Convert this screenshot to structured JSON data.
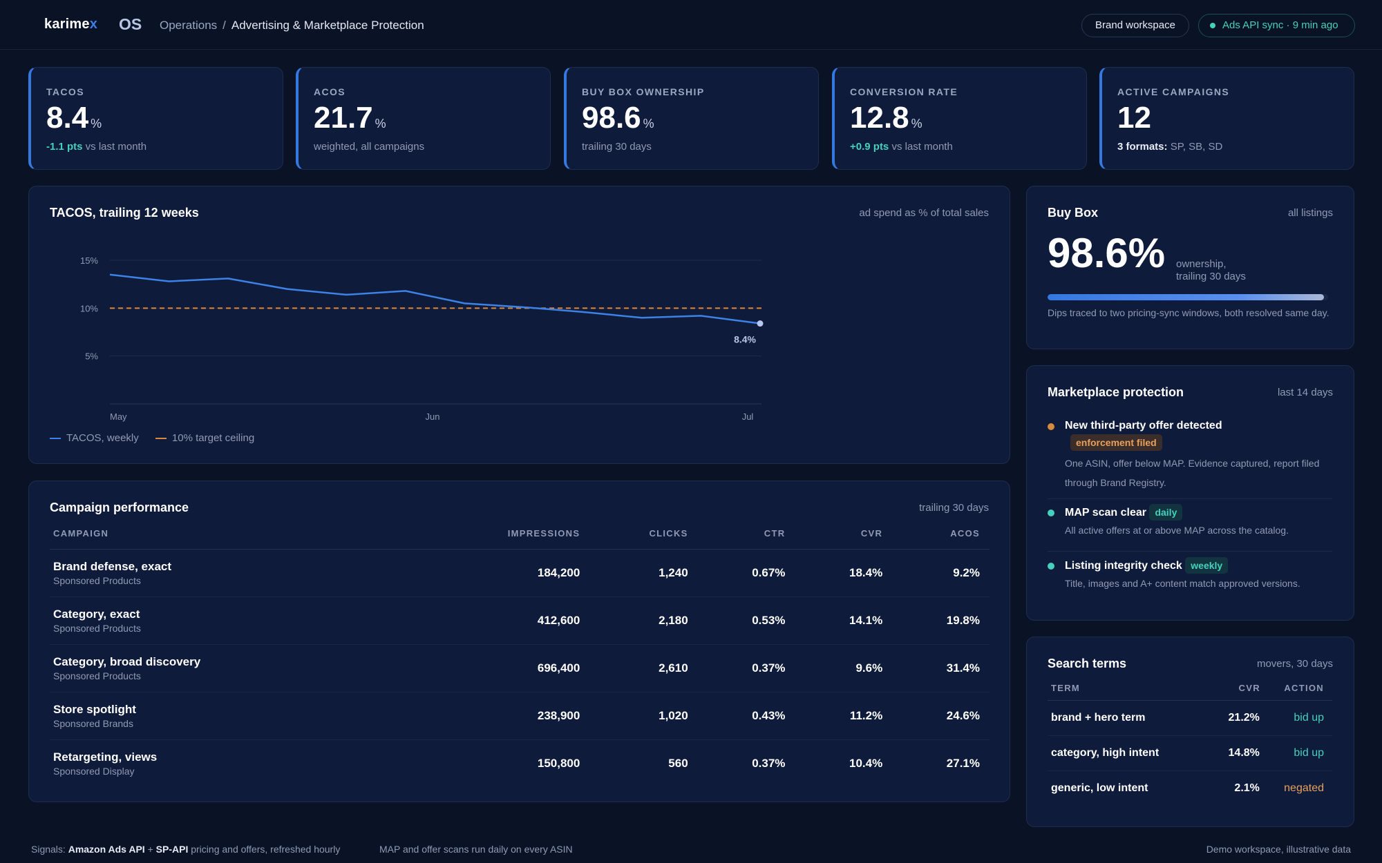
{
  "header": {
    "logo_main": "karime",
    "logo_accent": "x",
    "os_label": "OS",
    "breadcrumb_root": "Operations",
    "breadcrumb_separator": "/",
    "breadcrumb_current": "Advertising & Marketplace Protection",
    "workspace_button": "Brand workspace",
    "sync_status": "Ads API sync · 9 min ago",
    "sync_color": "#45d1bd"
  },
  "kpis": [
    {
      "label": "TACOS",
      "value": "8.4",
      "unit": "%",
      "sub_highlight": "-1.1 pts",
      "sub_text": " vs last month"
    },
    {
      "label": "ACOS",
      "value": "21.7",
      "unit": "%",
      "sub_highlight": "",
      "sub_text": "weighted, all campaigns"
    },
    {
      "label": "BUY BOX OWNERSHIP",
      "value": "98.6",
      "unit": "%",
      "sub_highlight": "",
      "sub_text": "trailing 30 days"
    },
    {
      "label": "CONVERSION RATE",
      "value": "12.8",
      "unit": "%",
      "sub_highlight": "+0.9 pts",
      "sub_text": " vs last month"
    },
    {
      "label": "ACTIVE CAMPAIGNS",
      "value": "12",
      "unit": "",
      "sub_strong": "3 formats:",
      "sub_text": " SP, SB, SD"
    }
  ],
  "tacos_chart": {
    "title": "TACOS, trailing 12 weeks",
    "note": "ad spend as % of total sales",
    "end_label": "8.4%",
    "legend_series": "TACOS, weekly",
    "legend_target": "10% target ceiling"
  },
  "chart_data": {
    "type": "line",
    "title": "TACOS, trailing 12 weeks",
    "xlabel": "",
    "ylabel": "",
    "x_tick_labels": [
      "May",
      "Jun",
      "Jul"
    ],
    "y_tick_labels": [
      "15%",
      "10%",
      "5%"
    ],
    "ylim": [
      0,
      15
    ],
    "grid": true,
    "legend_position": "bottom-left",
    "series": [
      {
        "name": "TACOS, weekly",
        "color": "#3d82e6",
        "values": [
          13.5,
          12.8,
          13.1,
          12.0,
          11.4,
          11.8,
          10.5,
          10.1,
          9.6,
          9.0,
          9.2,
          8.4
        ]
      },
      {
        "name": "10% target ceiling",
        "color": "#e0883a",
        "style": "dashed",
        "values": [
          10,
          10,
          10,
          10,
          10,
          10,
          10,
          10,
          10,
          10,
          10,
          10
        ]
      }
    ],
    "annotations": [
      "8.4%"
    ]
  },
  "campaigns": {
    "title": "Campaign performance",
    "note": "trailing 30 days",
    "columns": [
      "CAMPAIGN",
      "IMPRESSIONS",
      "CLICKS",
      "CTR",
      "CVR",
      "ACOS"
    ],
    "rows": [
      {
        "name": "Brand defense, exact",
        "type": "Sponsored Products",
        "impressions": "184,200",
        "clicks": "1,240",
        "ctr": "0.67%",
        "cvr": "18.4%",
        "acos": "9.2%"
      },
      {
        "name": "Category, exact",
        "type": "Sponsored Products",
        "impressions": "412,600",
        "clicks": "2,180",
        "ctr": "0.53%",
        "cvr": "14.1%",
        "acos": "19.8%"
      },
      {
        "name": "Category, broad discovery",
        "type": "Sponsored Products",
        "impressions": "696,400",
        "clicks": "2,610",
        "ctr": "0.37%",
        "cvr": "9.6%",
        "acos": "31.4%"
      },
      {
        "name": "Store spotlight",
        "type": "Sponsored Brands",
        "impressions": "238,900",
        "clicks": "1,020",
        "ctr": "0.43%",
        "cvr": "11.2%",
        "acos": "24.6%"
      },
      {
        "name": "Retargeting, views",
        "type": "Sponsored Display",
        "impressions": "150,800",
        "clicks": "560",
        "ctr": "0.37%",
        "cvr": "10.4%",
        "acos": "27.1%"
      }
    ]
  },
  "buy_box": {
    "title": "Buy Box",
    "note": "all listings",
    "value": "98.6%",
    "caption_line1": "ownership,",
    "caption_line2": "trailing 30 days",
    "progress": 0.986,
    "footnote": "Dips traced to two pricing-sync windows, both resolved same day."
  },
  "marketplace": {
    "title": "Marketplace protection",
    "note": "last 14 days",
    "items": [
      {
        "title": "New third-party offer detected",
        "badge": "enforcement filed",
        "badge_color": "orange",
        "dot_color": "#d68a3c",
        "desc": "One ASIN, offer below MAP. Evidence captured, report filed through Brand Registry."
      },
      {
        "title": "MAP scan clear",
        "badge": "daily",
        "badge_color": "teal",
        "dot_color": "#45d1bd",
        "desc": "All active offers at or above MAP across the catalog."
      },
      {
        "title": "Listing integrity check",
        "badge": "weekly",
        "badge_color": "teal",
        "dot_color": "#45d1bd",
        "desc": "Title, images and A+ content match approved versions."
      }
    ]
  },
  "search_terms": {
    "title": "Search terms",
    "note": "movers, 30 days",
    "columns": [
      "TERM",
      "CVR",
      "ACTION"
    ],
    "rows": [
      {
        "term": "brand + hero term",
        "cvr": "21.2%",
        "action": "bid up",
        "action_color": "#45d1bd"
      },
      {
        "term": "category, high intent",
        "cvr": "14.8%",
        "action": "bid up",
        "action_color": "#45d1bd"
      },
      {
        "term": "generic, low intent",
        "cvr": "2.1%",
        "action": "negated",
        "action_color": "#e8a05c"
      }
    ]
  },
  "footer": {
    "signals_label": "Signals:",
    "signals_a": "Amazon Ads API",
    "signals_plus": "+",
    "signals_b": "SP-API",
    "signals_rest": "pricing and offers, refreshed hourly",
    "map_note": "MAP and offer scans run daily on every ASIN",
    "demo_note": "Demo workspace, illustrative data"
  }
}
